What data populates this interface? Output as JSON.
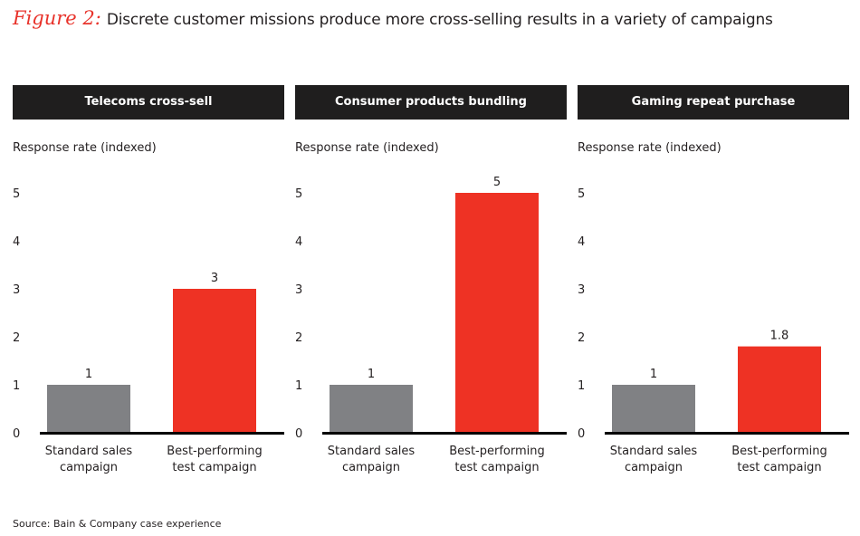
{
  "figure": {
    "label": "Figure 2:",
    "title": "Discrete customer missions produce more cross-selling results in a variety of campaigns",
    "source": "Source: Bain & Company case experience"
  },
  "colors": {
    "standard": "#808184",
    "best": "#ee3224",
    "header_bg": "#1f1e1e",
    "axis": "#000000"
  },
  "chart_data": [
    {
      "type": "bar",
      "title": "Telecoms cross-sell",
      "ylabel": "Response rate (indexed)",
      "xlabel": "",
      "categories": [
        "Standard sales campaign",
        "Best-performing test campaign"
      ],
      "category_lines": [
        [
          "Standard sales",
          "campaign"
        ],
        [
          "Best-performing",
          "test campaign"
        ]
      ],
      "values": [
        1,
        3
      ],
      "data_labels": [
        "1",
        "3"
      ],
      "ylim": [
        0,
        5
      ],
      "yticks": [
        0,
        1,
        2,
        3,
        4,
        5
      ],
      "grid": false
    },
    {
      "type": "bar",
      "title": "Consumer products bundling",
      "ylabel": "Response rate (indexed)",
      "xlabel": "",
      "categories": [
        "Standard sales campaign",
        "Best-performing test campaign"
      ],
      "category_lines": [
        [
          "Standard sales",
          "campaign"
        ],
        [
          "Best-performing",
          "test campaign"
        ]
      ],
      "values": [
        1,
        5
      ],
      "data_labels": [
        "1",
        "5"
      ],
      "ylim": [
        0,
        5
      ],
      "yticks": [
        0,
        1,
        2,
        3,
        4,
        5
      ],
      "grid": false
    },
    {
      "type": "bar",
      "title": "Gaming repeat purchase",
      "ylabel": "Response rate (indexed)",
      "xlabel": "",
      "categories": [
        "Standard sales campaign",
        "Best-performing test campaign"
      ],
      "category_lines": [
        [
          "Standard sales",
          "campaign"
        ],
        [
          "Best-performing",
          "test campaign"
        ]
      ],
      "values": [
        1,
        1.8
      ],
      "data_labels": [
        "1",
        "1.8"
      ],
      "ylim": [
        0,
        5
      ],
      "yticks": [
        0,
        1,
        2,
        3,
        4,
        5
      ],
      "grid": false
    }
  ]
}
